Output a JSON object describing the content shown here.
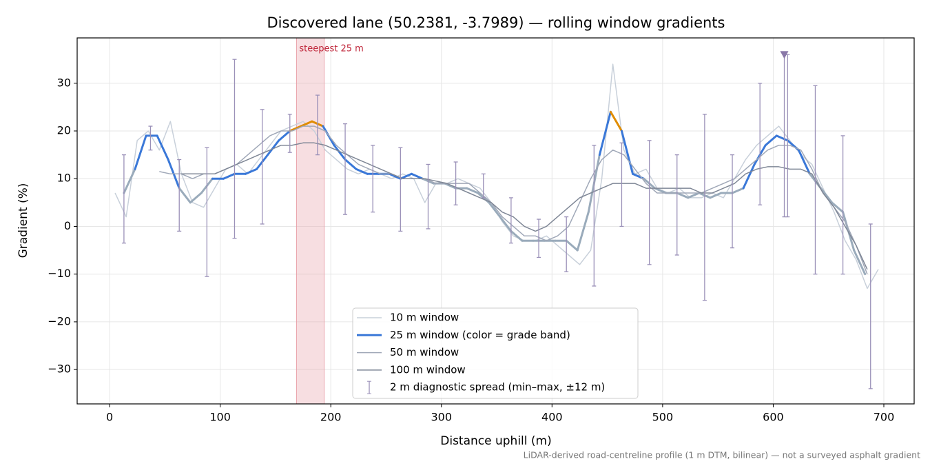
{
  "chart_data": {
    "type": "line",
    "title": "Discovered lane (50.2381, -3.7989) — rolling window gradients",
    "x_label": "Distance uphill (m)",
    "y_label": "Gradient (%)",
    "footnote": "LiDAR-derived road-centreline profile (1 m DTM, bilinear) — not a surveyed asphalt gradient",
    "xlim": [
      -29.3,
      727.4
    ],
    "ylim": [
      -37.2,
      39.5
    ],
    "xticks": [
      0,
      100,
      200,
      300,
      400,
      500,
      600,
      700
    ],
    "yticks": [
      {
        "value": -30,
        "label": "−30"
      },
      {
        "value": -20,
        "label": "−20"
      },
      {
        "value": -10,
        "label": "−10"
      },
      0,
      10,
      20,
      30
    ],
    "grid": true,
    "legend": "lower center",
    "series": [
      {
        "name": "10 m window",
        "color": "#c8d0da",
        "width": 1.5,
        "x": [
          5,
          15,
          25,
          35,
          45,
          55,
          65,
          75,
          85,
          95,
          105,
          115,
          125,
          135,
          145,
          155,
          165,
          175,
          185,
          195,
          205,
          215,
          225,
          235,
          245,
          255,
          265,
          275,
          285,
          295,
          305,
          315,
          325,
          335,
          345,
          355,
          365,
          375,
          385,
          395,
          405,
          415,
          425,
          435,
          445,
          455,
          465,
          475,
          485,
          495,
          505,
          515,
          525,
          535,
          545,
          555,
          565,
          575,
          585,
          595,
          605,
          615,
          625,
          635,
          645,
          655,
          665,
          675,
          685,
          695
        ],
        "values": [
          7,
          2,
          18,
          20,
          16,
          22,
          11,
          5,
          4,
          8,
          12,
          13,
          11,
          14,
          17,
          20,
          21,
          22,
          20,
          16,
          14,
          12,
          11,
          12,
          11,
          10,
          11,
          10,
          5,
          9,
          9,
          10,
          9,
          8,
          5,
          1,
          -2,
          -3,
          -3,
          -2,
          -4,
          -6,
          -8,
          -5,
          10,
          34,
          16,
          11,
          12,
          8,
          7,
          8,
          6,
          6,
          7,
          6,
          10,
          14,
          17,
          19,
          21,
          18,
          15,
          13,
          8,
          3,
          -3,
          -7,
          -13,
          -9
        ]
      },
      {
        "name": "25 m window (color = grade band)",
        "color": "#3a78d8",
        "width": 3,
        "band_limits": [
          10,
          20
        ],
        "band_colors": [
          "#9aabbb",
          "#3a78d8",
          "#e08c00"
        ],
        "x": [
          13,
          23,
          33,
          43,
          53,
          63,
          73,
          83,
          93,
          103,
          113,
          123,
          133,
          143,
          153,
          163,
          173,
          183,
          193,
          203,
          213,
          223,
          233,
          243,
          253,
          263,
          273,
          283,
          293,
          303,
          313,
          323,
          333,
          343,
          353,
          363,
          373,
          383,
          393,
          403,
          413,
          423,
          433,
          443,
          453,
          463,
          473,
          483,
          493,
          503,
          513,
          523,
          533,
          543,
          553,
          563,
          573,
          583,
          593,
          603,
          613,
          623,
          633,
          643,
          653,
          663,
          673,
          683
        ],
        "values": [
          7,
          12,
          19,
          19,
          14,
          8,
          5,
          7,
          10,
          10,
          11,
          11,
          12,
          15,
          18,
          20,
          21,
          22,
          21,
          17,
          14,
          12,
          11,
          11,
          11,
          10,
          11,
          10,
          9,
          9,
          8,
          8,
          7,
          5,
          2,
          -1,
          -3,
          -3,
          -3,
          -3,
          -3,
          -5,
          3,
          15,
          24,
          20,
          11,
          10,
          8,
          7,
          7,
          6,
          7,
          6,
          7,
          7,
          8,
          13,
          17,
          19,
          18,
          16,
          11,
          8,
          5,
          3,
          -5,
          -10
        ]
      },
      {
        "name": "50 m window",
        "color": "#a0a8b8",
        "width": 1.5,
        "x": [
          45,
          55,
          65,
          75,
          85,
          95,
          105,
          115,
          125,
          135,
          145,
          155,
          165,
          175,
          185,
          195,
          205,
          215,
          225,
          235,
          245,
          255,
          265,
          275,
          285,
          295,
          305,
          315,
          325,
          335,
          345,
          355,
          365,
          375,
          385,
          395,
          405,
          415,
          425,
          435,
          445,
          455,
          465,
          475,
          485,
          495,
          505,
          515,
          525,
          535,
          545,
          555,
          565,
          575,
          585,
          595,
          605,
          615,
          625,
          635,
          645,
          655,
          665,
          675,
          685
        ],
        "values": [
          11.5,
          11,
          11,
          10,
          11,
          11,
          12,
          13,
          15,
          17,
          19,
          20,
          20,
          21,
          21,
          20,
          17,
          15,
          13,
          12,
          11,
          11,
          10,
          10,
          10,
          9,
          9,
          9,
          9,
          7,
          5,
          2,
          0,
          -2,
          -2,
          -3,
          -2,
          0,
          5,
          10,
          14,
          16,
          15,
          12,
          9,
          7,
          7,
          7,
          7,
          7,
          8,
          9,
          10,
          12,
          14,
          16,
          17,
          17,
          16,
          12,
          7,
          4,
          1,
          -4,
          -10
        ]
      },
      {
        "name": "100 m window",
        "color": "#7f8796",
        "width": 1.5,
        "x": [
          65,
          75,
          85,
          95,
          105,
          115,
          125,
          135,
          145,
          155,
          165,
          175,
          185,
          195,
          205,
          215,
          225,
          235,
          245,
          255,
          265,
          275,
          285,
          295,
          305,
          315,
          325,
          335,
          345,
          355,
          365,
          375,
          385,
          395,
          405,
          415,
          425,
          435,
          445,
          455,
          465,
          475,
          485,
          495,
          505,
          515,
          525,
          535,
          545,
          555,
          565,
          575,
          585,
          595,
          605,
          615,
          625,
          635,
          645,
          655,
          665,
          675,
          685
        ],
        "values": [
          11,
          11,
          11,
          11,
          12,
          13,
          14,
          15,
          16,
          17,
          17,
          17.5,
          17.5,
          17,
          16,
          15,
          14,
          13,
          12,
          11,
          10,
          10,
          10,
          9.5,
          9,
          8,
          7,
          6,
          5,
          3,
          2,
          0,
          -1,
          0,
          2,
          4,
          6,
          7,
          8,
          9,
          9,
          9,
          8,
          8,
          8,
          8,
          8,
          7,
          7,
          8,
          9,
          11,
          12,
          12.5,
          12.5,
          12,
          12,
          11,
          7,
          4,
          0,
          -4,
          -9
        ]
      }
    ],
    "spread": {
      "name": "2 m diagnostic spread (min–max, ±12 m)",
      "color": "#9a90b8",
      "x": [
        13,
        37,
        63,
        88,
        113,
        138,
        163,
        188,
        213,
        238,
        263,
        288,
        313,
        338,
        363,
        388,
        413,
        438,
        463,
        488,
        513,
        538,
        563,
        588,
        610,
        613,
        638,
        663,
        688
      ],
      "low": [
        -3.5,
        16,
        -1,
        -10.5,
        -2.5,
        0.5,
        15.5,
        15,
        2.5,
        3,
        -1,
        -0.5,
        4.5,
        6,
        -3.5,
        -6.5,
        -9.5,
        -12.5,
        0,
        -8,
        -6,
        -15.5,
        -4.5,
        4.5,
        2,
        2,
        -10,
        -10,
        -34
      ],
      "high": [
        15,
        21,
        14,
        16.5,
        35,
        24.5,
        23.5,
        27.5,
        21.5,
        17,
        16.5,
        13,
        13.5,
        11,
        6,
        1.5,
        2,
        17,
        17.5,
        18,
        15,
        23.5,
        15,
        30,
        36,
        36,
        29.5,
        19,
        0.5
      ]
    },
    "highlight": {
      "label": "steepest 25 m",
      "span": [
        169,
        194
      ],
      "color": "#e8a0a8"
    },
    "marker": {
      "x": 610,
      "y": 36,
      "color": "#8a78a8"
    }
  }
}
